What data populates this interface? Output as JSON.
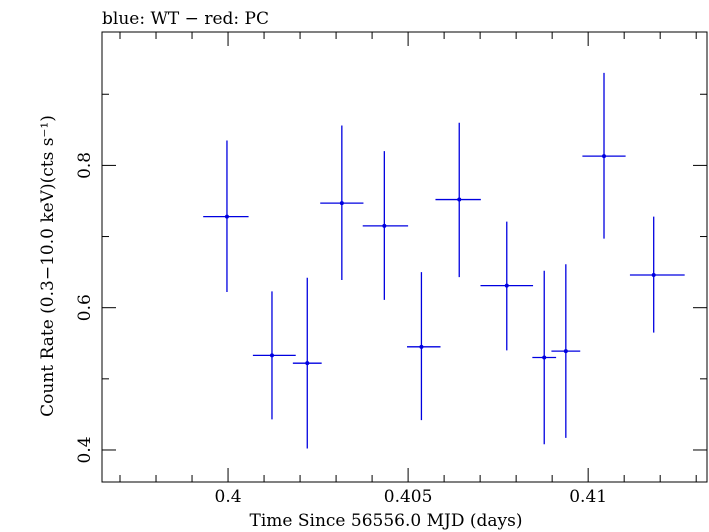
{
  "chart_data": {
    "type": "scatter",
    "title": "blue: WT − red: PC",
    "xlabel": "Time Since 56556.0 MJD (days)",
    "ylabel": "Count Rate (0.3−10.0 keV)(cts s⁻¹)",
    "xlim": [
      0.3965,
      0.4133
    ],
    "ylim": [
      0.355,
      0.9875
    ],
    "xticks": [
      {
        "value": 0.4,
        "label": "0.4"
      },
      {
        "value": 0.405,
        "label": "0.405"
      },
      {
        "value": 0.41,
        "label": "0.41"
      }
    ],
    "yticks": [
      {
        "value": 0.4,
        "label": "0.4"
      },
      {
        "value": 0.6,
        "label": "0.6"
      },
      {
        "value": 0.8,
        "label": "0.8"
      }
    ],
    "grid": false,
    "series": [
      {
        "color": "#0000e0",
        "points": [
          {
            "x": 0.39997,
            "y": 0.728,
            "xerr_lo": 0.00066,
            "xerr_hi": 0.0006,
            "y_lo": 0.622,
            "y_hi": 0.835
          },
          {
            "x": 0.40122,
            "y": 0.533,
            "xerr_lo": 0.00053,
            "xerr_hi": 0.00066,
            "y_lo": 0.443,
            "y_hi": 0.623
          },
          {
            "x": 0.4022,
            "y": 0.522,
            "xerr_lo": 0.0004,
            "xerr_hi": 0.0004,
            "y_lo": 0.402,
            "y_hi": 0.642
          },
          {
            "x": 0.40316,
            "y": 0.747,
            "xerr_lo": 0.0006,
            "xerr_hi": 0.0006,
            "y_lo": 0.639,
            "y_hi": 0.856
          },
          {
            "x": 0.40434,
            "y": 0.715,
            "xerr_lo": 0.0006,
            "xerr_hi": 0.00066,
            "y_lo": 0.611,
            "y_hi": 0.82
          },
          {
            "x": 0.40537,
            "y": 0.545,
            "xerr_lo": 0.0004,
            "xerr_hi": 0.00053,
            "y_lo": 0.442,
            "y_hi": 0.65
          },
          {
            "x": 0.40642,
            "y": 0.752,
            "xerr_lo": 0.00066,
            "xerr_hi": 0.0006,
            "y_lo": 0.643,
            "y_hi": 0.86
          },
          {
            "x": 0.40774,
            "y": 0.631,
            "xerr_lo": 0.00073,
            "xerr_hi": 0.00073,
            "y_lo": 0.54,
            "y_hi": 0.721
          },
          {
            "x": 0.40878,
            "y": 0.53,
            "xerr_lo": 0.00033,
            "xerr_hi": 0.00033,
            "y_lo": 0.408,
            "y_hi": 0.652
          },
          {
            "x": 0.40938,
            "y": 0.539,
            "xerr_lo": 0.0004,
            "xerr_hi": 0.0004,
            "y_lo": 0.417,
            "y_hi": 0.661
          },
          {
            "x": 0.41044,
            "y": 0.813,
            "xerr_lo": 0.0006,
            "xerr_hi": 0.0006,
            "y_lo": 0.697,
            "y_hi": 0.93
          },
          {
            "x": 0.41182,
            "y": 0.646,
            "xerr_lo": 0.00066,
            "xerr_hi": 0.00086,
            "y_lo": 0.565,
            "y_hi": 0.728
          }
        ]
      }
    ]
  }
}
